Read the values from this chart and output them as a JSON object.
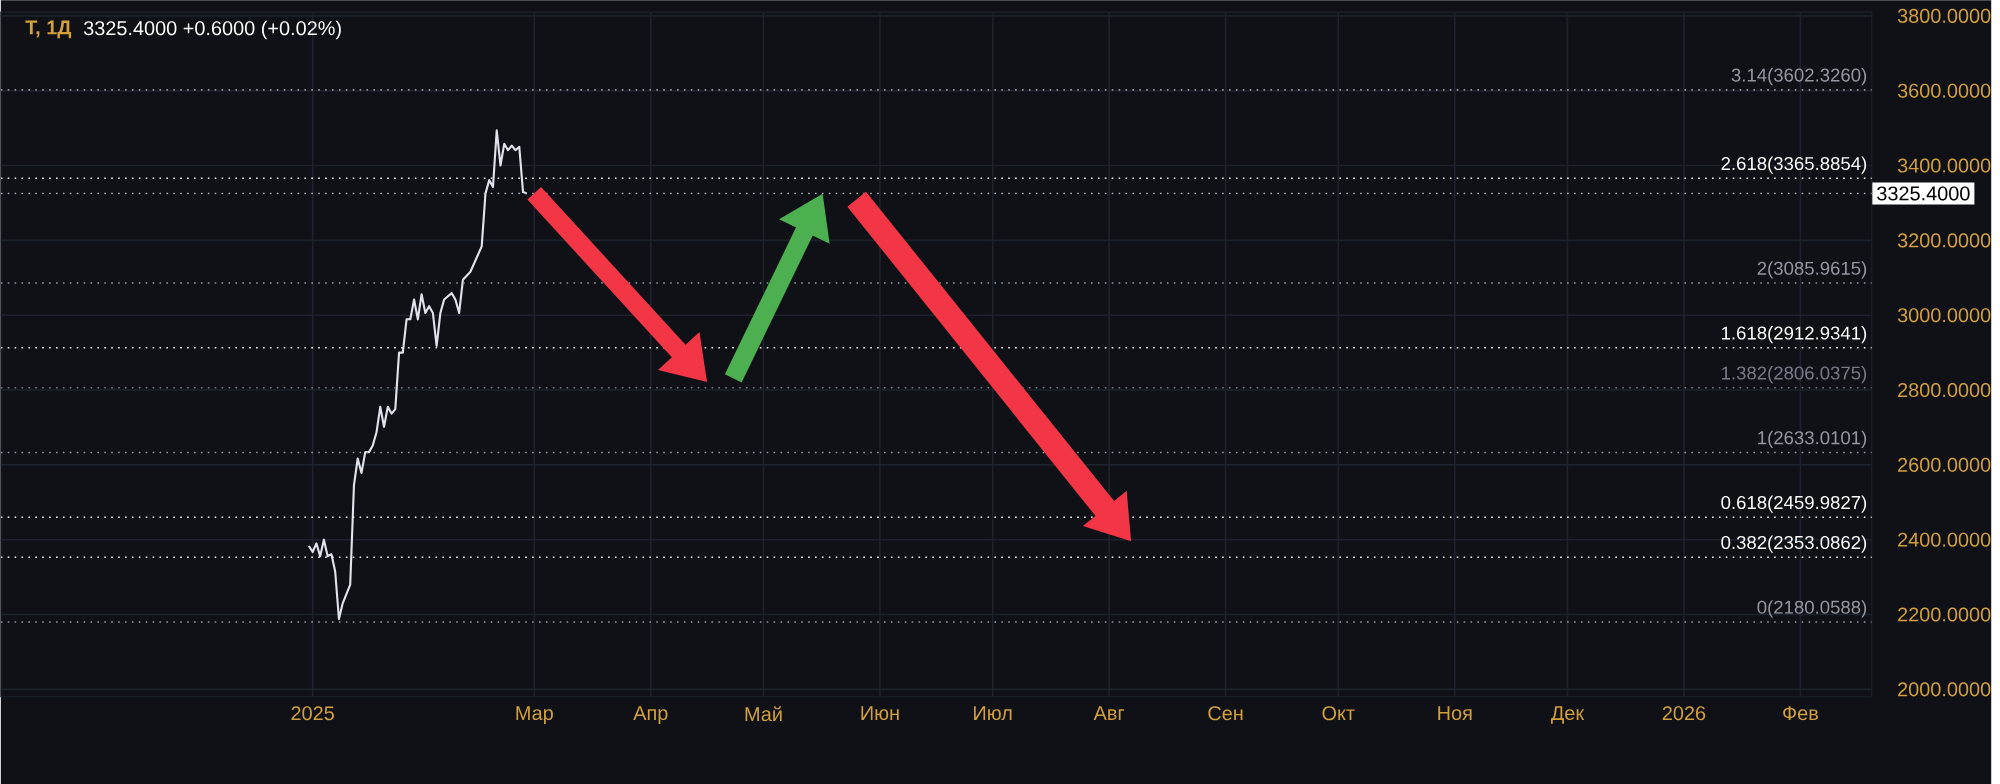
{
  "chart_data": {
    "type": "line",
    "title": "T, 1Д",
    "subtitle": "3325.4000 +0.6000 (+0.02%)",
    "x": [
      "2024-12-31",
      "2025-01-01",
      "2025-01-02",
      "2025-01-03",
      "2025-01-04",
      "2025-01-05",
      "2025-01-06",
      "2025-01-07",
      "2025-01-08",
      "2025-01-09",
      "2025-01-11",
      "2025-01-12",
      "2025-01-13",
      "2025-01-14",
      "2025-01-15",
      "2025-01-16",
      "2025-01-17",
      "2025-01-18",
      "2025-01-19",
      "2025-01-20",
      "2025-01-21",
      "2025-01-22",
      "2025-01-23",
      "2025-01-24",
      "2025-01-25",
      "2025-01-26",
      "2025-01-27",
      "2025-01-28",
      "2025-01-29",
      "2025-01-30",
      "2025-01-31",
      "2025-02-01",
      "2025-02-02",
      "2025-02-03",
      "2025-02-04",
      "2025-02-05",
      "2025-02-07",
      "2025-02-08",
      "2025-02-09",
      "2025-02-10",
      "2025-02-12",
      "2025-02-15",
      "2025-02-16",
      "2025-02-17",
      "2025-02-18",
      "2025-02-19",
      "2025-02-20",
      "2025-02-21",
      "2025-02-22",
      "2025-02-23",
      "2025-02-24",
      "2025-02-25",
      "2025-02-26",
      "2025-02-27"
    ],
    "series": [
      {
        "color": "#e0e3eb",
        "values": [
          2383,
          2367,
          2390,
          2356,
          2400,
          2356,
          2361,
          2315,
          2188,
          2230,
          2280,
          2546,
          2617,
          2578,
          2634,
          2634,
          2652,
          2687,
          2755,
          2702,
          2755,
          2737,
          2749,
          2900,
          2900,
          2989,
          2989,
          3042,
          2989,
          3056,
          3006,
          3024,
          3006,
          2918,
          3006,
          3042,
          3059,
          3042,
          3006,
          3095,
          3116,
          3184,
          3325,
          3361,
          3343,
          3494,
          3400,
          3458,
          3441,
          3453,
          3441,
          3450,
          3329,
          3325
        ]
      }
    ],
    "xlim": [
      "2024-10-10",
      "2026-02-20"
    ],
    "xticks": [
      "2025",
      {
        "value": "2025-03-01",
        "label": "Мар"
      },
      {
        "value": "2025-04-01",
        "label": "Апр"
      },
      {
        "value": "2025-05-01",
        "label": "Май"
      },
      {
        "value": "2025-06-01",
        "label": "Июн"
      },
      {
        "value": "2025-07-01",
        "label": "Июл"
      },
      {
        "value": "2025-08-01",
        "label": "Авг"
      },
      {
        "value": "2025-09-01",
        "label": "Сен"
      },
      {
        "value": "2025-10-01",
        "label": "Окт"
      },
      {
        "value": "2025-11-01",
        "label": "Ноя"
      },
      {
        "value": "2025-12-01",
        "label": "Дек"
      },
      "2026",
      {
        "value": "2026-02-01",
        "label": "Фев"
      }
    ],
    "ylim": [
      1980,
      3810
    ],
    "yticks": [
      {
        "value": 2000,
        "label": "2000.0000"
      },
      {
        "value": 2200,
        "label": "2200.0000"
      },
      {
        "value": 2400,
        "label": "2400.0000"
      },
      {
        "value": 2600,
        "label": "2600.0000"
      },
      {
        "value": 2800,
        "label": "2800.0000"
      },
      {
        "value": 3000,
        "label": "3000.0000"
      },
      {
        "value": 3200,
        "label": "3200.0000"
      },
      {
        "value": 3400,
        "label": "3400.0000"
      },
      {
        "value": 3600,
        "label": "3600.0000"
      },
      {
        "value": 3800,
        "label": "3800.0000"
      }
    ],
    "grid": true,
    "ref_lines": [
      {
        "axis": "y",
        "value": 3602.326,
        "label": "3.14(3602.3260)",
        "color": "#9598a1",
        "line_style": "dotted"
      },
      {
        "axis": "y",
        "value": 3365.8854,
        "label": "2.618(3365.8854)",
        "color": "#ffffff",
        "line_style": "dotted"
      },
      {
        "axis": "y",
        "value": 3325.4,
        "color": "#b2b5be",
        "line_style": "dotted"
      },
      {
        "axis": "y",
        "value": 3085.9615,
        "label": "2(3085.9615)",
        "color": "#9598a1",
        "line_style": "dotted"
      },
      {
        "axis": "y",
        "value": 2912.9341,
        "label": "1.618(2912.9341)",
        "color": "#ffffff",
        "line_style": "dotted"
      },
      {
        "axis": "y",
        "value": 2806.0375,
        "label": "1.382(2806.0375)",
        "color": "#787b86",
        "line_style": "dotted"
      },
      {
        "axis": "y",
        "value": 2633.0101,
        "label": "1(2633.0101)",
        "color": "#9598a1",
        "line_style": "dotted"
      },
      {
        "axis": "y",
        "value": 2459.9827,
        "label": "0.618(2459.9827)",
        "color": "#ffffff",
        "line_style": "dotted"
      },
      {
        "axis": "y",
        "value": 2353.0862,
        "label": "0.382(2353.0862)",
        "color": "#ffffff",
        "line_style": "dotted"
      },
      {
        "axis": "y",
        "value": 2180.0588,
        "label": "0(2180.0588)",
        "color": "#9598a1",
        "line_style": "dotted"
      }
    ],
    "annotations": [
      {
        "text": "3325.4000",
        "x": "2026-02-20",
        "y": 3325.4
      }
    ]
  }
}
